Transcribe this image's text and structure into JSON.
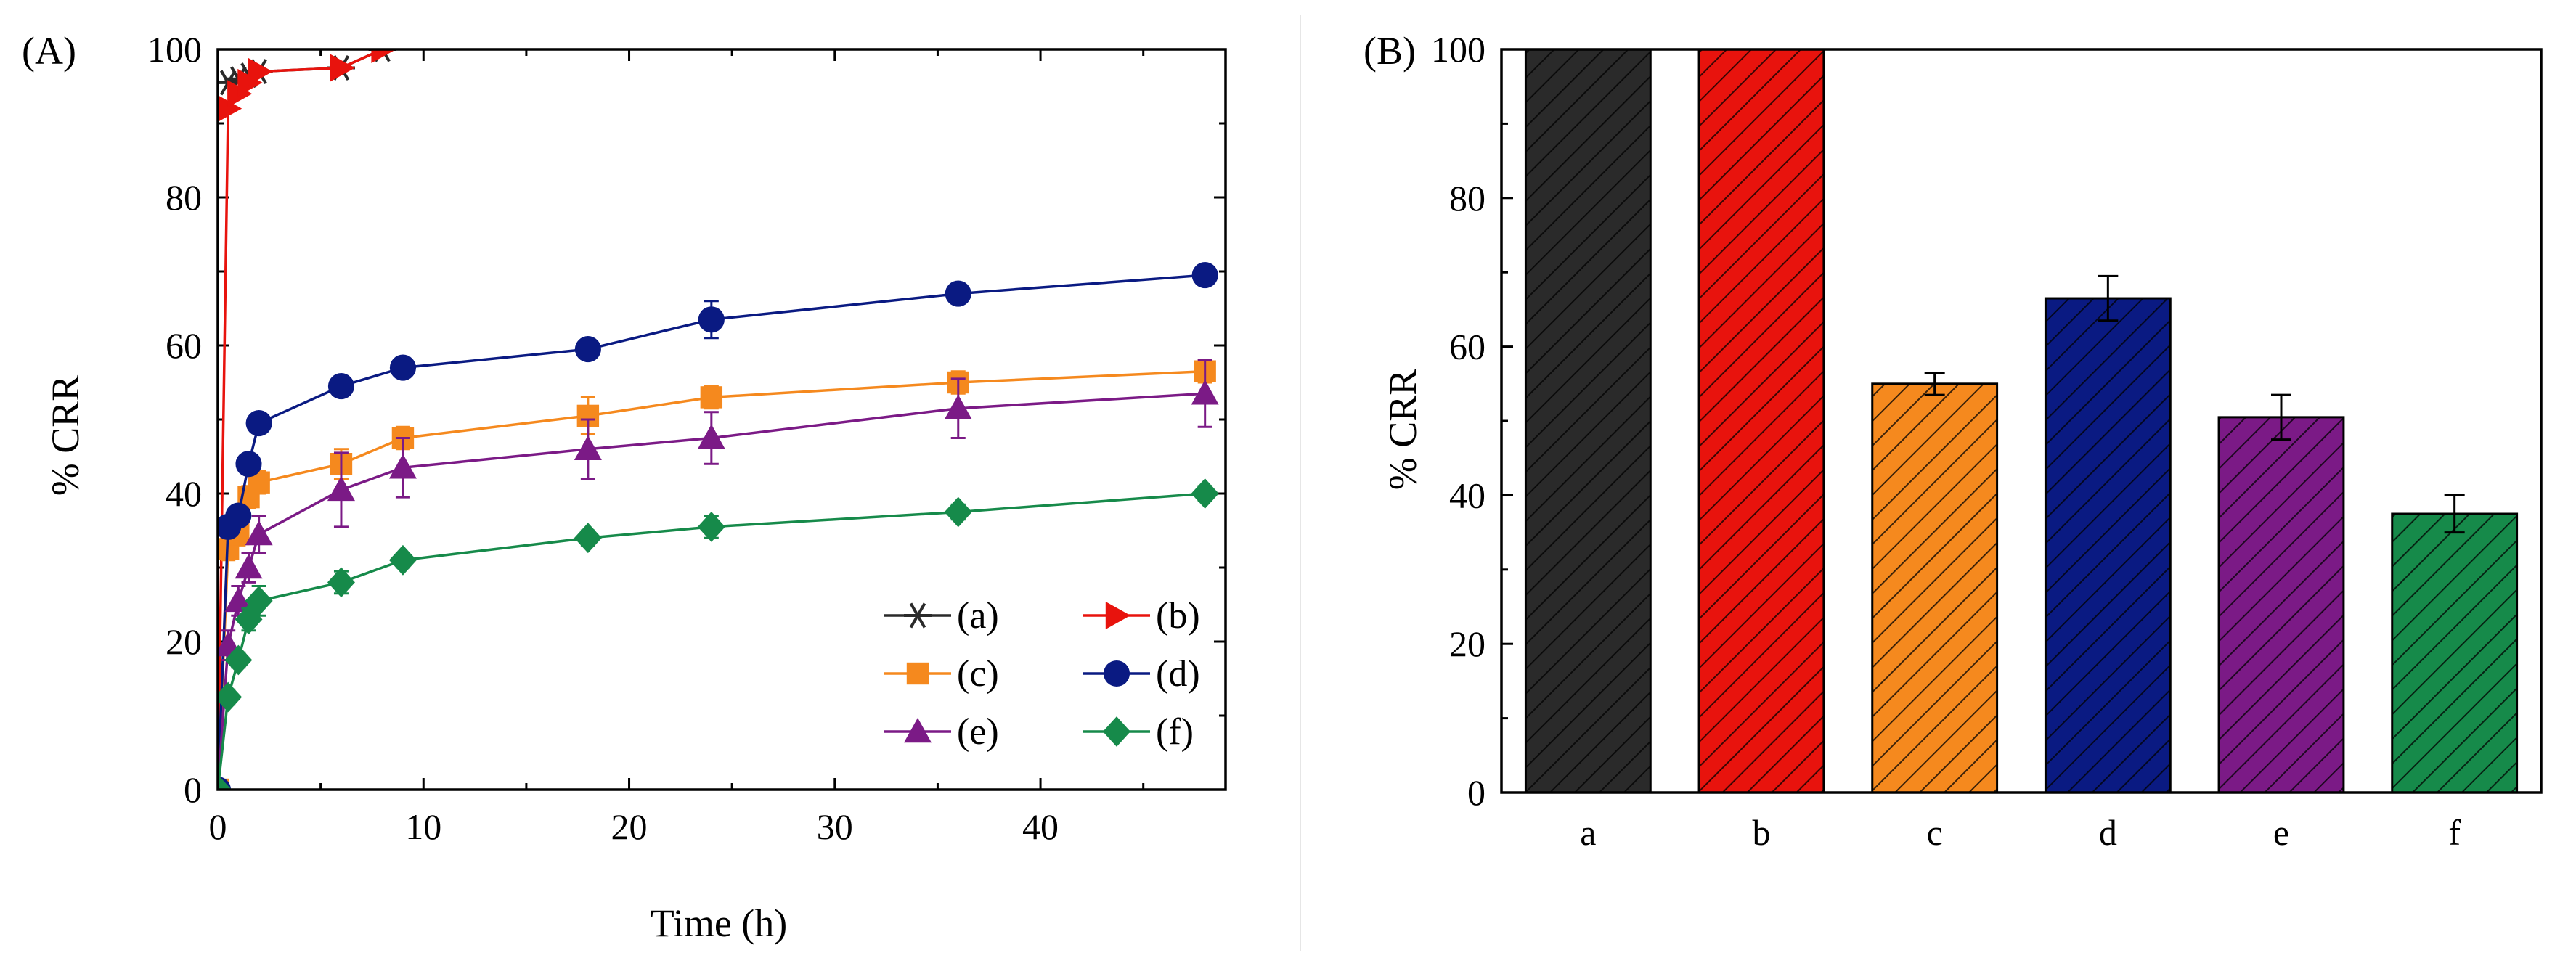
{
  "colors": {
    "a": "#2a2a2a",
    "b": "#e8130d",
    "c": "#f5891e",
    "d": "#0a1a82",
    "e": "#7b1a86",
    "f": "#168a4a"
  },
  "chart_data": [
    {
      "type": "line",
      "panel_label": "(A)",
      "xlabel": "Time (h)",
      "ylabel": "% CRR",
      "xlim": [
        0,
        49
      ],
      "ylim": [
        0,
        100
      ],
      "x_ticks": [
        "0",
        "10",
        "20",
        "30",
        "40"
      ],
      "y_ticks": [
        "0",
        "20",
        "40",
        "60",
        "80",
        "100"
      ],
      "legend_position": "bottom-right",
      "series": [
        {
          "key": "a",
          "name": "(a)",
          "marker": "star",
          "color_key": "a",
          "x": [
            0.5,
            1,
            1.5,
            2,
            6,
            8
          ],
          "y": [
            95.5,
            96,
            96.5,
            97,
            97.5,
            100
          ],
          "err": [
            0,
            0,
            0,
            0,
            0,
            0
          ]
        },
        {
          "key": "b",
          "name": "(b)",
          "marker": "triangle-right",
          "color_key": "b",
          "x": [
            0,
            0.5,
            1,
            1.5,
            2,
            6,
            8
          ],
          "y": [
            0,
            92,
            94,
            95.5,
            97,
            97.5,
            100
          ],
          "err": [
            0,
            0,
            0,
            0,
            0,
            0,
            0
          ]
        },
        {
          "key": "c",
          "name": "(c)",
          "marker": "square",
          "color_key": "c",
          "x": [
            0,
            0.5,
            1,
            1.5,
            2,
            6,
            9,
            18,
            24,
            36,
            48
          ],
          "y": [
            0,
            32.5,
            34.5,
            39.5,
            41.5,
            44,
            47.5,
            50.5,
            53,
            55,
            56.5
          ],
          "err": [
            0,
            1.5,
            1.5,
            1.5,
            1.5,
            2,
            1.5,
            2.5,
            1.5,
            1.5,
            1.5
          ]
        },
        {
          "key": "d",
          "name": "(d)",
          "marker": "circle",
          "color_key": "d",
          "x": [
            0,
            0.5,
            1,
            1.5,
            2,
            6,
            9,
            18,
            24,
            36,
            48
          ],
          "y": [
            0,
            35.5,
            37,
            44,
            49.5,
            54.5,
            57,
            59.5,
            63.5,
            67,
            69.5
          ],
          "err": [
            0,
            1,
            1,
            1,
            1,
            1,
            1,
            1,
            2.5,
            1,
            1
          ]
        },
        {
          "key": "e",
          "name": "(e)",
          "marker": "triangle-up",
          "color_key": "e",
          "x": [
            0,
            0.5,
            1,
            1.5,
            2,
            6,
            9,
            18,
            24,
            36,
            48
          ],
          "y": [
            0,
            19.5,
            25.5,
            30,
            34.5,
            40.5,
            43.5,
            46,
            47.5,
            51.5,
            53.5
          ],
          "err": [
            0,
            2,
            2,
            2,
            2.5,
            5,
            4,
            4,
            3.5,
            4,
            4.5
          ]
        },
        {
          "key": "f",
          "name": "(f)",
          "marker": "diamond",
          "color_key": "f",
          "x": [
            0,
            0.5,
            1,
            1.5,
            2,
            6,
            9,
            18,
            24,
            36,
            48
          ],
          "y": [
            0,
            12.5,
            17.5,
            23,
            25.5,
            28,
            31,
            34,
            35.5,
            37.5,
            40
          ],
          "err": [
            0,
            1,
            1,
            1.5,
            2,
            1.5,
            1,
            1,
            1.5,
            1,
            1
          ]
        }
      ]
    },
    {
      "type": "bar",
      "panel_label": "(B)",
      "xlabel": "",
      "ylabel": "% CRR",
      "ylim": [
        0,
        100
      ],
      "y_ticks": [
        "0",
        "20",
        "40",
        "60",
        "80",
        "100"
      ],
      "categories": [
        "a",
        "b",
        "c",
        "d",
        "e",
        "f"
      ],
      "values": [
        100,
        100,
        55,
        66.5,
        50.5,
        37.5
      ],
      "err": [
        0,
        0,
        1.5,
        3,
        3,
        2.5
      ],
      "color_keys": [
        "a",
        "b",
        "c",
        "d",
        "e",
        "f"
      ],
      "pattern": "diagonal-hatch"
    }
  ]
}
